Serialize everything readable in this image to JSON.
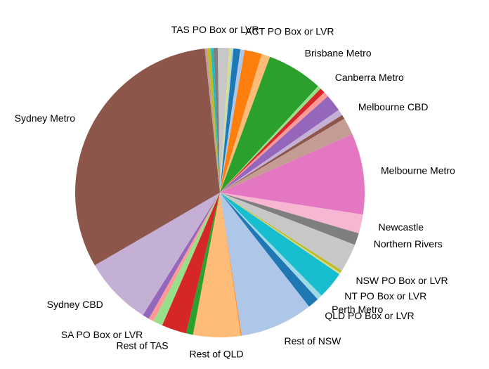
{
  "chart_data": {
    "type": "pie",
    "title": "",
    "start_angle_deg": 95,
    "direction": "clockwise",
    "slices": [
      {
        "label": "",
        "value": 0.4,
        "color": "#bcbd22"
      },
      {
        "label": "",
        "value": 0.3,
        "color": "#17becf"
      },
      {
        "label": "TAS PO Box or LVR",
        "value": 0.5,
        "color": "#7f7f7f"
      },
      {
        "label": "",
        "value": 1.3,
        "color": "#c7c7c7"
      },
      {
        "label": "",
        "value": 0.3,
        "color": "#dbdb8d"
      },
      {
        "label": "",
        "value": 0.2,
        "color": "#9edae5"
      },
      {
        "label": "",
        "value": 0.8,
        "color": "#1f77b4"
      },
      {
        "label": "ACT PO Box or LVR",
        "value": 0.5,
        "color": "#aec7e8"
      },
      {
        "label": "",
        "value": 2.0,
        "color": "#ff7f0e"
      },
      {
        "label": "",
        "value": 1.0,
        "color": "#ffbb78"
      },
      {
        "label": "Brisbane Metro",
        "value": 6.5,
        "color": "#2ca02c"
      },
      {
        "label": "",
        "value": 0.4,
        "color": "#98df8a"
      },
      {
        "label": "Canberra Metro",
        "value": 0.6,
        "color": "#d62728"
      },
      {
        "label": "",
        "value": 0.6,
        "color": "#ff9896"
      },
      {
        "label": "",
        "value": 2.0,
        "color": "#9467bd"
      },
      {
        "label": "",
        "value": 0.7,
        "color": "#c5b0d5"
      },
      {
        "label": "Melbourne CBD",
        "value": 0.5,
        "color": "#8c564b"
      },
      {
        "label": "",
        "value": 2.0,
        "color": "#c49c94"
      },
      {
        "label": "Melbourne Metro",
        "value": 9.4,
        "color": "#e377c2"
      },
      {
        "label": "Newcastle",
        "value": 2.2,
        "color": "#f7b6d2"
      },
      {
        "label": "Northern Rivers",
        "value": 1.4,
        "color": "#7f7f7f"
      },
      {
        "label": "",
        "value": 3.3,
        "color": "#c7c7c7"
      },
      {
        "label": "NSW PO Box or LVR",
        "value": 0.3,
        "color": "#bcbd22"
      },
      {
        "label": "",
        "value": 0.2,
        "color": "#dbdb8d"
      },
      {
        "label": "NT PO Box or LVR",
        "value": 3.2,
        "color": "#17becf"
      },
      {
        "label": "Perth Metro",
        "value": 0.6,
        "color": "#9edae5"
      },
      {
        "label": "QLD PO Box or LVR",
        "value": 1.3,
        "color": "#1f77b4"
      },
      {
        "label": "Rest of NSW",
        "value": 8.5,
        "color": "#aec7e8"
      },
      {
        "label": "",
        "value": 0.1,
        "color": "#ff7f0e"
      },
      {
        "label": "Rest of QLD",
        "value": 5.5,
        "color": "#ffbb78"
      },
      {
        "label": "",
        "value": 0.8,
        "color": "#2ca02c"
      },
      {
        "label": "Rest of TAS",
        "value": 2.9,
        "color": "#d62728"
      },
      {
        "label": "",
        "value": 1.1,
        "color": "#98df8a"
      },
      {
        "label": "SA PO Box or LVR",
        "value": 0.6,
        "color": "#ff9896"
      },
      {
        "label": "",
        "value": 0.8,
        "color": "#9467bd"
      },
      {
        "label": "Sydney CBD",
        "value": 8.0,
        "color": "#c5b0d5"
      },
      {
        "label": "Sydney Metro",
        "value": 33.0,
        "color": "#8c564b"
      },
      {
        "label": "",
        "value": 0.3,
        "color": "#c49c94"
      }
    ]
  }
}
